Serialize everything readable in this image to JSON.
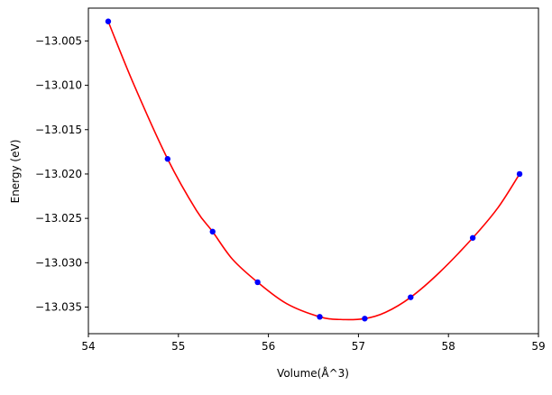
{
  "chart_data": {
    "type": "scatter",
    "title": "",
    "xlabel": "Volume(Å^3)",
    "ylabel": "Energy (eV)",
    "xlim": [
      54.0,
      59.0
    ],
    "ylim": [
      -13.038,
      -13.0013
    ],
    "xticks": [
      54,
      55,
      56,
      57,
      58,
      59
    ],
    "xtick_labels": [
      "54",
      "55",
      "56",
      "57",
      "58",
      "59"
    ],
    "yticks": [
      -13.035,
      -13.03,
      -13.025,
      -13.02,
      -13.015,
      -13.01,
      -13.005
    ],
    "ytick_labels": [
      "−13.035",
      "−13.030",
      "−13.025",
      "−13.020",
      "−13.015",
      "−13.010",
      "−13.005"
    ],
    "grid": false,
    "series": [
      {
        "kind": "points",
        "color": "#0000ff",
        "x": [
          54.22,
          54.88,
          55.38,
          55.88,
          56.57,
          57.07,
          57.58,
          58.27,
          58.79
        ],
        "y": [
          -13.0028,
          -13.0183,
          -13.0265,
          -13.0322,
          -13.0361,
          -13.0363,
          -13.0339,
          -13.0272,
          -13.02
        ]
      },
      {
        "kind": "fit",
        "color": "#ff0000",
        "x": [
          54.22,
          54.5,
          54.88,
          55.2,
          55.38,
          55.6,
          55.88,
          56.2,
          56.57,
          56.8,
          57.07,
          57.3,
          57.58,
          57.9,
          58.27,
          58.55,
          58.79
        ],
        "y": [
          -13.0028,
          -13.0098,
          -13.0183,
          -13.0241,
          -13.0265,
          -13.0296,
          -13.0322,
          -13.0346,
          -13.0361,
          -13.0364,
          -13.0363,
          -13.0356,
          -13.0339,
          -13.0311,
          -13.0272,
          -13.0238,
          -13.02
        ]
      }
    ]
  }
}
